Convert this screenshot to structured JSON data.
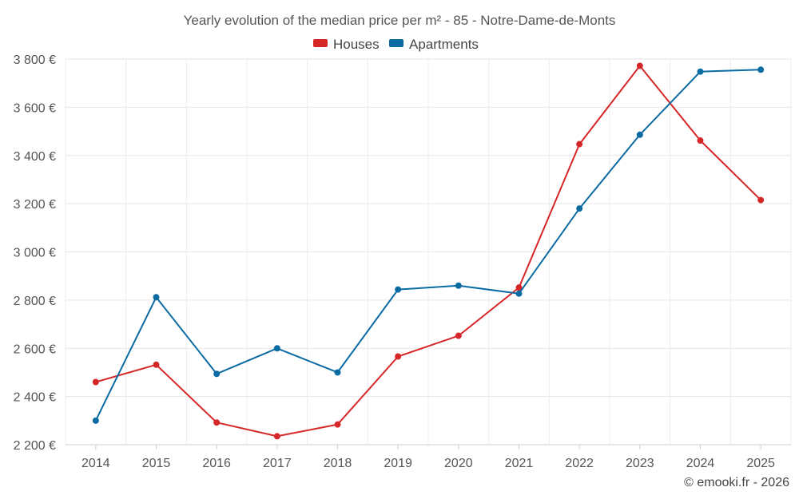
{
  "chart_data": {
    "type": "line",
    "title": "Yearly evolution of the median price per m² - 85 - Notre-Dame-de-Monts",
    "categories": [
      "2014",
      "2015",
      "2016",
      "2017",
      "2018",
      "2019",
      "2020",
      "2021",
      "2022",
      "2023",
      "2024",
      "2025"
    ],
    "series": [
      {
        "name": "Houses",
        "color": "#d62728",
        "values": [
          2460,
          2532,
          2292,
          2235,
          2284,
          2566,
          2652,
          2852,
          3447,
          3772,
          3462,
          3215
        ]
      },
      {
        "name": "Apartments",
        "color": "#0b6ba3",
        "values": [
          2300,
          2812,
          2494,
          2600,
          2500,
          2844,
          2860,
          2827,
          3180,
          3486,
          3748,
          3756
        ]
      }
    ],
    "ylim": [
      2200,
      3800
    ],
    "yticks": [
      2200,
      2400,
      2600,
      2800,
      3000,
      3200,
      3400,
      3600,
      3800
    ],
    "ytick_labels": [
      "2 200 €",
      "2 400 €",
      "2 600 €",
      "2 800 €",
      "3 000 €",
      "3 200 €",
      "3 400 €",
      "3 600 €",
      "3 800 €"
    ],
    "legend_position": "top-center",
    "grid": true,
    "xlabel": "",
    "ylabel": ""
  },
  "credit": "© emooki.fr - 2026"
}
